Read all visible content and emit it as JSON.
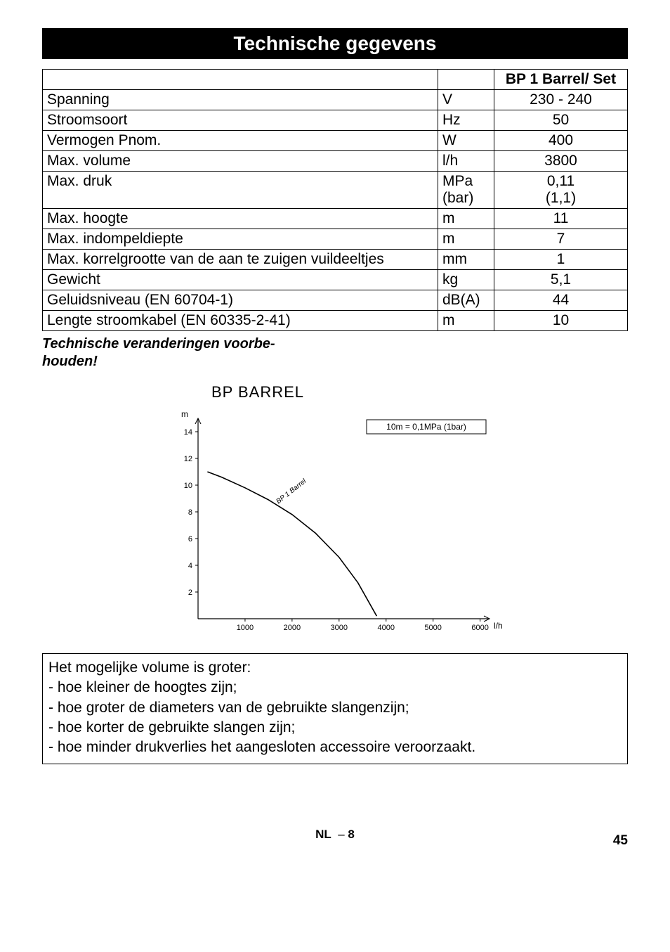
{
  "header": {
    "title": "Technische gegevens"
  },
  "table": {
    "product_header": "BP 1 Barrel/ Set",
    "rows": [
      {
        "label": "Spanning",
        "unit": "V",
        "value": "230 - 240"
      },
      {
        "label": "Stroomsoort",
        "unit": "Hz",
        "value": "50"
      },
      {
        "label": "Vermogen Pnom.",
        "unit": "W",
        "value": "400"
      },
      {
        "label": "Max. volume",
        "unit": "l/h",
        "value": "3800"
      },
      {
        "label": "Max. druk",
        "unit": "MPa (bar)",
        "value": "0,11 (1,1)",
        "multiline": true
      },
      {
        "label": "Max. hoogte",
        "unit": "m",
        "value": "11"
      },
      {
        "label": "Max. indompeldiepte",
        "unit": "m",
        "value": "7"
      },
      {
        "label": "Max. korrelgrootte van de aan te zuigen vuildeeltjes",
        "unit": "mm",
        "value": "1"
      },
      {
        "label": "Gewicht",
        "unit": "kg",
        "value": "5,1"
      },
      {
        "label": "Geluidsniveau (EN 60704-1)",
        "unit": "dB(A)",
        "value": "44"
      },
      {
        "label": "Lengte stroomkabel (EN 60335-2-41)",
        "unit": "m",
        "value": "10"
      }
    ]
  },
  "note": "Technische veranderingen voorbehouden!",
  "chart": {
    "title": "BP BARREL",
    "legend_box": "10m = 0,1MPa (1bar)",
    "y_label": "m",
    "x_label": "l/h",
    "y_ticks": [
      2,
      4,
      6,
      8,
      10,
      12,
      14
    ],
    "x_ticks": [
      1000,
      2000,
      3000,
      4000,
      5000,
      6000
    ],
    "x_lim": [
      0,
      6200
    ],
    "y_lim": [
      0,
      15
    ],
    "series_label": "BP 1 Barrel",
    "series_points_xy": [
      [
        200,
        11.0
      ],
      [
        500,
        10.6
      ],
      [
        1000,
        9.8
      ],
      [
        1500,
        8.9
      ],
      [
        2000,
        7.8
      ],
      [
        2500,
        6.4
      ],
      [
        3000,
        4.6
      ],
      [
        3400,
        2.7
      ],
      [
        3800,
        0.2
      ]
    ],
    "line_color": "#000000",
    "axis_color": "#000000",
    "tick_font_size": 11,
    "background": "#ffffff"
  },
  "volume_box": {
    "intro": "Het mogelijke volume is groter:",
    "items": [
      "- hoe kleiner de hoogtes zijn;",
      "- hoe groter de diameters van de gebruikte slangenzijn;",
      "- hoe korter de gebruikte slangen zijn;",
      "- hoe minder drukverlies het aangesloten accessoire veroorzaakt."
    ]
  },
  "footer": {
    "lang": "NL",
    "sep": "–",
    "page_local": "8",
    "page_global": "45"
  }
}
